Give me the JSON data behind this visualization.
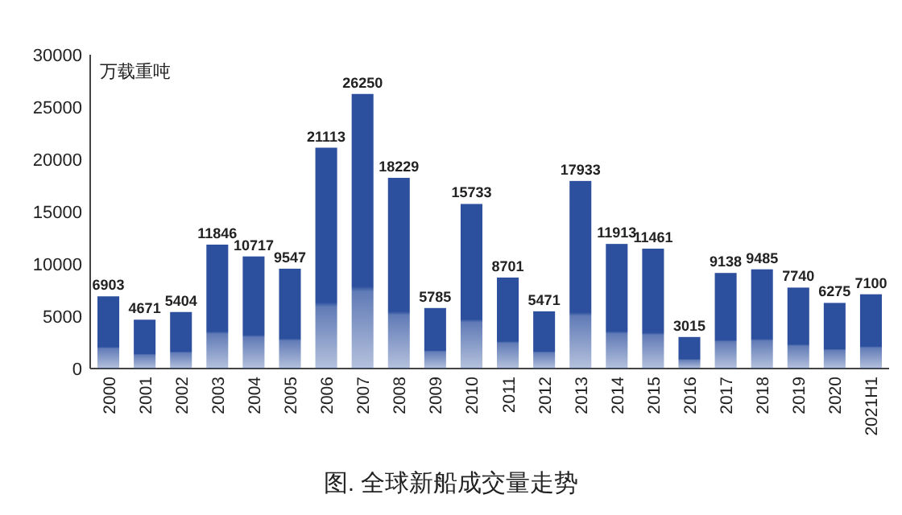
{
  "chart_data": {
    "type": "bar",
    "title": "图. 全球新船成交量走势",
    "ylabel": "万载重吨",
    "categories": [
      "2000",
      "2001",
      "2002",
      "2003",
      "2004",
      "2005",
      "2006",
      "2007",
      "2008",
      "2009",
      "2010",
      "2011",
      "2012",
      "2013",
      "2014",
      "2015",
      "2016",
      "2017",
      "2018",
      "2019",
      "2020",
      "2021H1"
    ],
    "values": [
      6903,
      4671,
      5404,
      11846,
      10717,
      9547,
      21113,
      26250,
      18229,
      5785,
      15733,
      8701,
      5471,
      17933,
      11913,
      11461,
      3015,
      9138,
      9485,
      7740,
      6275,
      7100
    ],
    "color": "#2c4f9e",
    "ylim": [
      0,
      30000
    ],
    "yticks": [
      0,
      5000,
      10000,
      15000,
      20000,
      25000,
      30000
    ],
    "grid": false,
    "data_labels": true
  }
}
